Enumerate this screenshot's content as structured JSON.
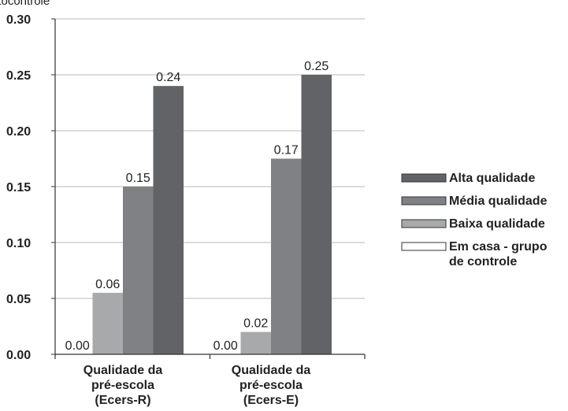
{
  "chart_data": {
    "type": "bar",
    "ylabel": "itocontrole",
    "categories": [
      [
        "Qualidade da",
        "pré-escola",
        "(Ecers-R)"
      ],
      [
        "Qualidade da",
        "pré-escola",
        "(Ecers-E)"
      ]
    ],
    "series": [
      {
        "name": "Em casa - grupo de controle",
        "legend_lines": [
          "Em casa - grupo",
          "de controle"
        ],
        "color": "#ffffff",
        "values": [
          0.0,
          0.0
        ],
        "labels": [
          "0.00",
          "0.00"
        ]
      },
      {
        "name": "Baixa qualidade",
        "legend_lines": [
          "Baixa qualidade"
        ],
        "color": "#a8a9ab",
        "values": [
          0.055,
          0.02
        ],
        "labels": [
          "0.06",
          "0.02"
        ]
      },
      {
        "name": "Média qualidade",
        "legend_lines": [
          "Média qualidade"
        ],
        "color": "#808184",
        "values": [
          0.15,
          0.175
        ],
        "labels": [
          "0.15",
          "0.17"
        ]
      },
      {
        "name": "Alta qualidade",
        "legend_lines": [
          "Alta qualidade"
        ],
        "color": "#626366",
        "values": [
          0.24,
          0.25
        ],
        "labels": [
          "0.24",
          "0.25"
        ]
      }
    ],
    "legend_order": [
      3,
      2,
      1,
      0
    ],
    "legend_position": "right",
    "yticks": [
      "0.00",
      "0.05",
      "0.10",
      "0.15",
      "0.20",
      "0.25",
      "0.30"
    ],
    "ylim": [
      0,
      0.3
    ],
    "grid": true
  }
}
